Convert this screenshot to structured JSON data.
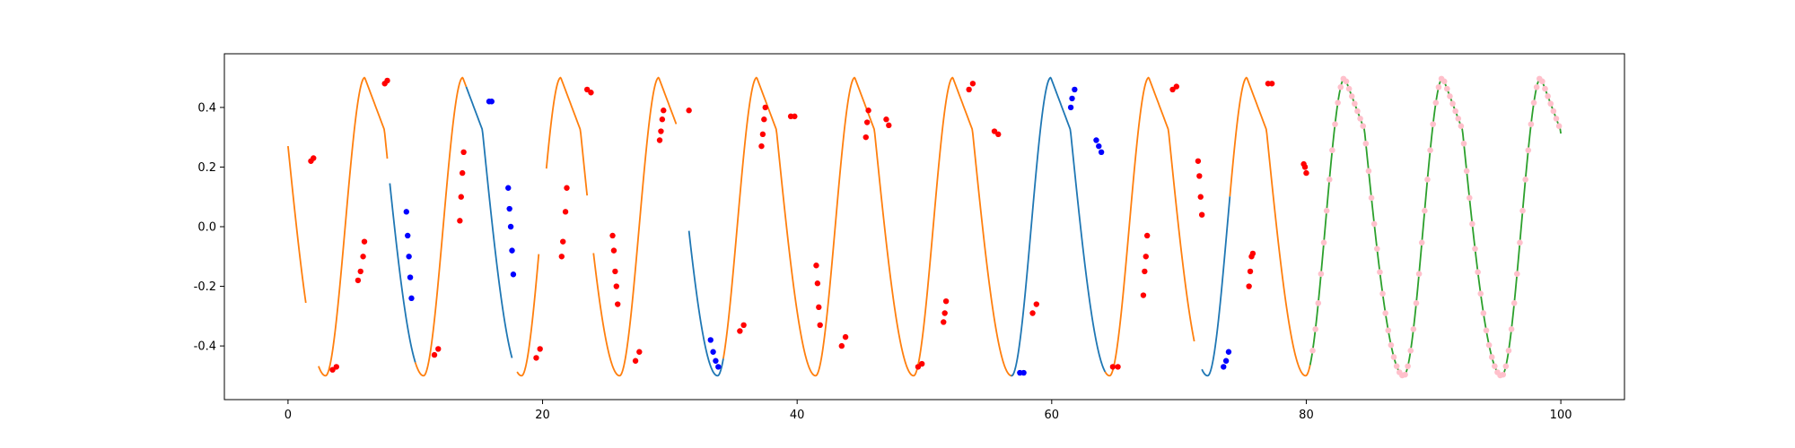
{
  "chart_data": {
    "type": "line",
    "title": "",
    "xlabel": "",
    "ylabel": "",
    "xlim": [
      -5,
      105
    ],
    "ylim": [
      -0.58,
      0.58
    ],
    "x_ticks": [
      0,
      20,
      40,
      60,
      80,
      100
    ],
    "y_ticks": [
      -0.4,
      -0.2,
      0.0,
      0.2,
      0.4
    ],
    "grid": false,
    "legend": "none",
    "colors": {
      "orange": "#ff7f0e",
      "blue": "#1f77b4",
      "green": "#2ca02c",
      "red": "#ff0000",
      "darkblue": "#0000ff",
      "pink": "#ffc0cb"
    },
    "oscillation": {
      "period": 7.7,
      "amplitude": 0.5,
      "phase_start": 0.41
    },
    "series": [
      {
        "color": "orange",
        "x_range": [
          0,
          1.4
        ]
      },
      {
        "color": "orange",
        "x_range": [
          2.4,
          7.8
        ]
      },
      {
        "color": "blue",
        "x_range": [
          8.0,
          10.0
        ]
      },
      {
        "color": "orange",
        "x_range": [
          10.0,
          14.0
        ]
      },
      {
        "color": "blue",
        "x_range": [
          14.0,
          17.6
        ]
      },
      {
        "color": "orange",
        "x_range": [
          18.0,
          19.7
        ]
      },
      {
        "color": "orange",
        "x_range": [
          20.3,
          23.5
        ]
      },
      {
        "color": "orange",
        "x_range": [
          24.0,
          30.5
        ]
      },
      {
        "color": "blue",
        "x_range": [
          31.5,
          34.2
        ]
      },
      {
        "color": "orange",
        "x_range": [
          34.2,
          57.0
        ]
      },
      {
        "color": "blue",
        "x_range": [
          56.8,
          64.2
        ]
      },
      {
        "color": "orange",
        "x_range": [
          64.2,
          71.2
        ]
      },
      {
        "color": "blue",
        "x_range": [
          71.8,
          74.0
        ]
      },
      {
        "color": "orange",
        "x_range": [
          74.0,
          80.3
        ]
      },
      {
        "color": "green",
        "x_range": [
          80.3,
          100
        ]
      }
    ],
    "red_markers": [
      {
        "x": 1.8,
        "y": 0.22
      },
      {
        "x": 2.0,
        "y": 0.23
      },
      {
        "x": 3.5,
        "y": -0.48
      },
      {
        "x": 3.8,
        "y": -0.47
      },
      {
        "x": 5.5,
        "y": -0.18
      },
      {
        "x": 5.7,
        "y": -0.15
      },
      {
        "x": 5.9,
        "y": -0.1
      },
      {
        "x": 6.0,
        "y": -0.05
      },
      {
        "x": 7.6,
        "y": 0.48
      },
      {
        "x": 7.8,
        "y": 0.49
      },
      {
        "x": 11.5,
        "y": -0.43
      },
      {
        "x": 11.8,
        "y": -0.41
      },
      {
        "x": 13.5,
        "y": 0.02
      },
      {
        "x": 13.6,
        "y": 0.1
      },
      {
        "x": 13.7,
        "y": 0.18
      },
      {
        "x": 13.8,
        "y": 0.25
      },
      {
        "x": 19.5,
        "y": -0.44
      },
      {
        "x": 19.8,
        "y": -0.41
      },
      {
        "x": 21.5,
        "y": -0.1
      },
      {
        "x": 21.6,
        "y": -0.05
      },
      {
        "x": 21.8,
        "y": 0.05
      },
      {
        "x": 21.9,
        "y": 0.13
      },
      {
        "x": 23.5,
        "y": 0.46
      },
      {
        "x": 23.8,
        "y": 0.45
      },
      {
        "x": 25.5,
        "y": -0.03
      },
      {
        "x": 25.6,
        "y": -0.08
      },
      {
        "x": 25.7,
        "y": -0.15
      },
      {
        "x": 25.8,
        "y": -0.2
      },
      {
        "x": 25.9,
        "y": -0.26
      },
      {
        "x": 27.3,
        "y": -0.45
      },
      {
        "x": 27.6,
        "y": -0.42
      },
      {
        "x": 29.2,
        "y": 0.29
      },
      {
        "x": 29.3,
        "y": 0.32
      },
      {
        "x": 29.4,
        "y": 0.36
      },
      {
        "x": 29.5,
        "y": 0.39
      },
      {
        "x": 31.5,
        "y": 0.39
      },
      {
        "x": 35.5,
        "y": -0.35
      },
      {
        "x": 35.8,
        "y": -0.33
      },
      {
        "x": 37.2,
        "y": 0.27
      },
      {
        "x": 37.3,
        "y": 0.31
      },
      {
        "x": 37.4,
        "y": 0.36
      },
      {
        "x": 37.5,
        "y": 0.4
      },
      {
        "x": 39.5,
        "y": 0.37
      },
      {
        "x": 39.8,
        "y": 0.37
      },
      {
        "x": 41.5,
        "y": -0.13
      },
      {
        "x": 41.6,
        "y": -0.19
      },
      {
        "x": 41.7,
        "y": -0.27
      },
      {
        "x": 41.8,
        "y": -0.33
      },
      {
        "x": 43.5,
        "y": -0.4
      },
      {
        "x": 43.8,
        "y": -0.37
      },
      {
        "x": 45.4,
        "y": 0.3
      },
      {
        "x": 45.5,
        "y": 0.35
      },
      {
        "x": 45.6,
        "y": 0.39
      },
      {
        "x": 47.0,
        "y": 0.36
      },
      {
        "x": 47.2,
        "y": 0.34
      },
      {
        "x": 49.5,
        "y": -0.47
      },
      {
        "x": 49.8,
        "y": -0.46
      },
      {
        "x": 51.5,
        "y": -0.32
      },
      {
        "x": 51.6,
        "y": -0.29
      },
      {
        "x": 51.7,
        "y": -0.25
      },
      {
        "x": 53.5,
        "y": 0.46
      },
      {
        "x": 53.8,
        "y": 0.48
      },
      {
        "x": 55.5,
        "y": 0.32
      },
      {
        "x": 55.8,
        "y": 0.31
      },
      {
        "x": 58.5,
        "y": -0.29
      },
      {
        "x": 58.8,
        "y": -0.26
      },
      {
        "x": 64.8,
        "y": -0.47
      },
      {
        "x": 65.2,
        "y": -0.47
      },
      {
        "x": 67.2,
        "y": -0.23
      },
      {
        "x": 67.3,
        "y": -0.15
      },
      {
        "x": 67.4,
        "y": -0.1
      },
      {
        "x": 67.5,
        "y": -0.03
      },
      {
        "x": 69.5,
        "y": 0.46
      },
      {
        "x": 69.8,
        "y": 0.47
      },
      {
        "x": 71.5,
        "y": 0.22
      },
      {
        "x": 71.6,
        "y": 0.17
      },
      {
        "x": 71.7,
        "y": 0.1
      },
      {
        "x": 71.8,
        "y": 0.04
      },
      {
        "x": 75.5,
        "y": -0.2
      },
      {
        "x": 75.6,
        "y": -0.15
      },
      {
        "x": 75.7,
        "y": -0.1
      },
      {
        "x": 75.8,
        "y": -0.09
      },
      {
        "x": 77.0,
        "y": 0.48
      },
      {
        "x": 77.3,
        "y": 0.48
      },
      {
        "x": 79.8,
        "y": 0.21
      },
      {
        "x": 79.9,
        "y": 0.2
      },
      {
        "x": 80.0,
        "y": 0.18
      }
    ],
    "blue_markers": [
      {
        "x": 9.3,
        "y": 0.05
      },
      {
        "x": 9.4,
        "y": -0.03
      },
      {
        "x": 9.5,
        "y": -0.1
      },
      {
        "x": 9.6,
        "y": -0.17
      },
      {
        "x": 9.7,
        "y": -0.24
      },
      {
        "x": 15.8,
        "y": 0.42
      },
      {
        "x": 16.0,
        "y": 0.42
      },
      {
        "x": 17.3,
        "y": 0.13
      },
      {
        "x": 17.4,
        "y": 0.06
      },
      {
        "x": 17.5,
        "y": 0.0
      },
      {
        "x": 17.6,
        "y": -0.08
      },
      {
        "x": 17.7,
        "y": -0.16
      },
      {
        "x": 33.2,
        "y": -0.38
      },
      {
        "x": 33.4,
        "y": -0.42
      },
      {
        "x": 33.6,
        "y": -0.45
      },
      {
        "x": 33.8,
        "y": -0.47
      },
      {
        "x": 57.5,
        "y": -0.49
      },
      {
        "x": 57.8,
        "y": -0.49
      },
      {
        "x": 61.5,
        "y": 0.4
      },
      {
        "x": 61.6,
        "y": 0.43
      },
      {
        "x": 61.8,
        "y": 0.46
      },
      {
        "x": 63.5,
        "y": 0.29
      },
      {
        "x": 63.7,
        "y": 0.27
      },
      {
        "x": 63.9,
        "y": 0.25
      },
      {
        "x": 73.5,
        "y": -0.47
      },
      {
        "x": 73.7,
        "y": -0.45
      },
      {
        "x": 73.9,
        "y": -0.42
      }
    ],
    "pink_markers_range": [
      80.5,
      100
    ],
    "pink_marker_step": 0.22
  }
}
